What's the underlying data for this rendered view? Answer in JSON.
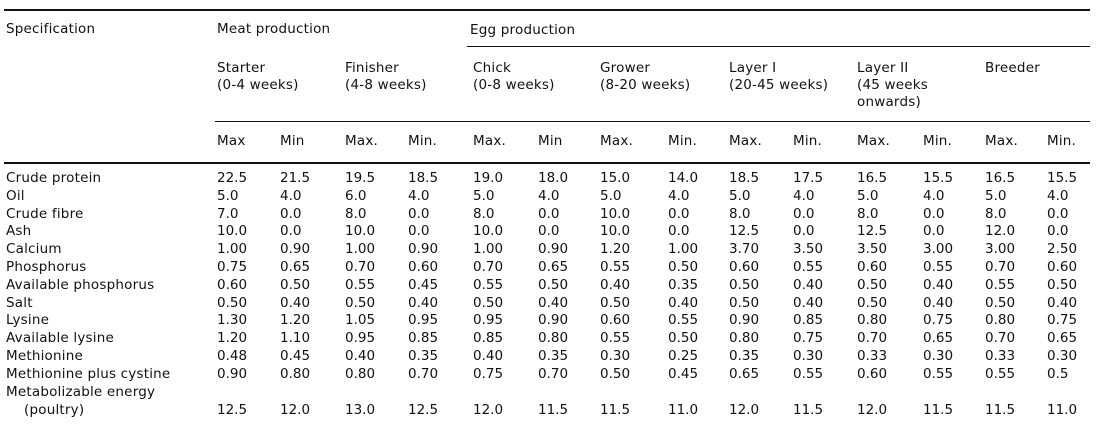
{
  "header": {
    "specification": "Specification",
    "meat_production": "Meat production",
    "egg_production": "Egg production"
  },
  "groups": [
    {
      "label": "Starter",
      "sublabel": "(0-4 weeks)"
    },
    {
      "label": "Finisher",
      "sublabel": "(4-8 weeks)"
    },
    {
      "label": "Chick",
      "sublabel": "(0-8 weeks)"
    },
    {
      "label": "Grower",
      "sublabel": "(8-20 weeks)"
    },
    {
      "label": "Layer I",
      "sublabel": "(20-45 weeks)"
    },
    {
      "label": "Layer II",
      "sublabel": "(45 weeks onwards)"
    },
    {
      "label": "Breeder",
      "sublabel": ""
    }
  ],
  "maxmin": [
    "Max",
    "Min",
    "Max.",
    "Min.",
    "Max.",
    "Min",
    "Max.",
    "Min.",
    "Max.",
    "Min.",
    "Max.",
    "Min.",
    "Max.",
    "Min."
  ],
  "rows": [
    {
      "label": "Crude protein",
      "values": [
        "22.5",
        "21.5",
        "19.5",
        "18.5",
        "19.0",
        "18.0",
        "15.0",
        "14.0",
        "18.5",
        "17.5",
        "16.5",
        "15.5",
        "16.5",
        "15.5"
      ]
    },
    {
      "label": "Oil",
      "values": [
        "5.0",
        "4.0",
        "6.0",
        "4.0",
        "5.0",
        "4.0",
        "5.0",
        "4.0",
        "5.0",
        "4.0",
        "5.0",
        "4.0",
        "5.0",
        "4.0"
      ]
    },
    {
      "label": "Crude fibre",
      "values": [
        "7.0",
        "0.0",
        "8.0",
        "0.0",
        "8.0",
        "0.0",
        "10.0",
        "0.0",
        "8.0",
        "0.0",
        "8.0",
        "0.0",
        "8.0",
        "0.0"
      ]
    },
    {
      "label": "Ash",
      "values": [
        "10.0",
        "0.0",
        "10.0",
        "0.0",
        "10.0",
        "0.0",
        "10.0",
        "0.0",
        "12.5",
        "0.0",
        "12.5",
        "0.0",
        "12.0",
        "0.0"
      ]
    },
    {
      "label": "Calcium",
      "values": [
        "1.00",
        "0.90",
        "1.00",
        "0.90",
        "1.00",
        "0.90",
        "1.20",
        "1.00",
        "3.70",
        "3.50",
        "3.50",
        "3.00",
        "3.00",
        "2.50"
      ]
    },
    {
      "label": "Phosphorus",
      "values": [
        "0.75",
        "0.65",
        "0.70",
        "0.60",
        "0.70",
        "0.65",
        "0.55",
        "0.50",
        "0.60",
        "0.55",
        "0.60",
        "0.55",
        "0.70",
        "0.60"
      ]
    },
    {
      "label": "Available phosphorus",
      "values": [
        "0.60",
        "0.50",
        "0.55",
        "0.45",
        "0.55",
        "0.50",
        "0.40",
        "0.35",
        "0.50",
        "0.40",
        "0.50",
        "0.40",
        "0.55",
        "0.50"
      ]
    },
    {
      "label": "Salt",
      "values": [
        "0.50",
        "0.40",
        "0.50",
        "0.40",
        "0.50",
        "0.40",
        "0.50",
        "0.40",
        "0.50",
        "0.40",
        "0.50",
        "0.40",
        "0.50",
        "0.40"
      ]
    },
    {
      "label": "Lysine",
      "values": [
        "1.30",
        "1.20",
        "1.05",
        "0.95",
        "0.95",
        "0.90",
        "0.60",
        "0.55",
        "0.90",
        "0.85",
        "0.80",
        "0.75",
        "0.80",
        "0.75"
      ]
    },
    {
      "label": "Available lysine",
      "values": [
        "1.20",
        "1.10",
        "0.95",
        "0.85",
        "0.85",
        "0.80",
        "0.55",
        "0.50",
        "0.80",
        "0.75",
        "0.70",
        "0.65",
        "0.70",
        "0.65"
      ]
    },
    {
      "label": "Methionine",
      "values": [
        "0.48",
        "0.45",
        "0.40",
        "0.35",
        "0.40",
        "0.35",
        "0.30",
        "0.25",
        "0.35",
        "0.30",
        "0.33",
        "0.30",
        "0.33",
        "0.30"
      ]
    },
    {
      "label": "Methionine plus cystine",
      "values": [
        "0.90",
        "0.80",
        "0.80",
        "0.70",
        "0.75",
        "0.70",
        "0.50",
        "0.45",
        "0.65",
        "0.55",
        "0.60",
        "0.55",
        "0.55",
        "0.5"
      ]
    },
    {
      "label": "Metabolizable energy",
      "label2": "(poultry)",
      "values": [
        "12.5",
        "12.0",
        "13.0",
        "12.5",
        "12.0",
        "11.5",
        "11.5",
        "11.0",
        "12.0",
        "11.5",
        "12.0",
        "11.5",
        "11.5",
        "11.0"
      ]
    }
  ]
}
